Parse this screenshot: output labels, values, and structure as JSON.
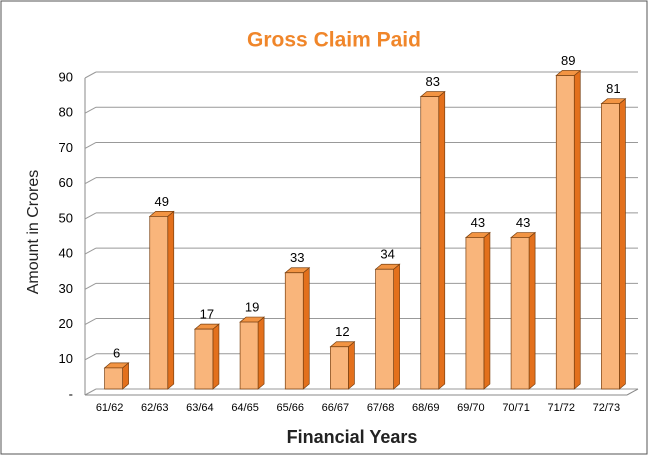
{
  "chart_data": {
    "type": "bar3d",
    "title": "Gross Claim Paid",
    "x_label": "Financial Years",
    "y_label": "Amount in Crores",
    "categories": [
      "61/62",
      "62/63",
      "63/64",
      "64/65",
      "65/66",
      "66/67",
      "67/68",
      "68/69",
      "69/70",
      "70/71",
      "71/72",
      "72/73"
    ],
    "values": [
      6,
      49,
      17,
      19,
      33,
      12,
      34,
      83,
      43,
      43,
      89,
      81
    ],
    "color": "#f9b57b",
    "ylim": [
      0,
      90
    ],
    "yticks": [
      {
        "value": 0,
        "label": "-"
      },
      10,
      20,
      30,
      40,
      50,
      60,
      70,
      80,
      90
    ],
    "grid": true
  }
}
